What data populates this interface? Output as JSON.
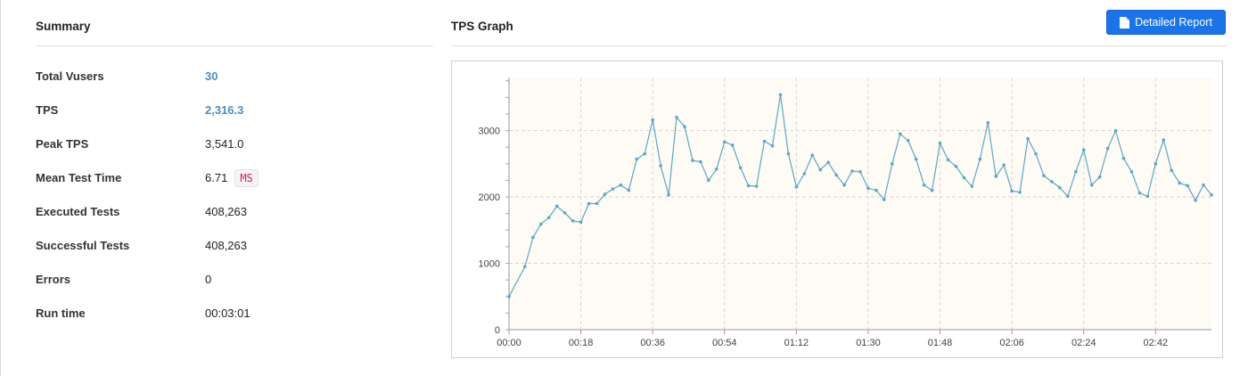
{
  "summary": {
    "title": "Summary",
    "rows": [
      {
        "label": "Total Vusers",
        "value": "30"
      },
      {
        "label": "TPS",
        "value": "2,316.3"
      },
      {
        "label": "Peak TPS",
        "value": "3,541.0"
      },
      {
        "label": "Mean Test Time",
        "value": "6.71",
        "unit": "MS"
      },
      {
        "label": "Executed Tests",
        "value": "408,263"
      },
      {
        "label": "Successful Tests",
        "value": "408,263"
      },
      {
        "label": "Errors",
        "value": "0"
      },
      {
        "label": "Run time",
        "value": "00:03:01"
      }
    ]
  },
  "graph": {
    "title": "TPS Graph",
    "report_button_label": "Detailed Report",
    "report_button_icon": "document-icon"
  },
  "colors": {
    "accent_button": "#1a73e8",
    "link_value": "#4a8fc4",
    "series_line": "#5aa9c2",
    "plot_background": "#fdfbf4",
    "unit_badge_text": "#c7254e"
  },
  "chart_data": {
    "type": "line",
    "title": "",
    "xlabel": "",
    "ylabel": "",
    "x_unit": "seconds",
    "x_tick_labels": [
      "00:00",
      "00:18",
      "00:36",
      "00:54",
      "01:12",
      "01:30",
      "01:48",
      "02:06",
      "02:24",
      "02:42"
    ],
    "y_tick_labels": [
      "0",
      "1000",
      "2000",
      "3000"
    ],
    "xlim": [
      0,
      176
    ],
    "ylim": [
      0,
      3800
    ],
    "grid": true,
    "series": [
      {
        "name": "",
        "x": [
          0,
          4,
          6,
          8,
          10,
          12,
          14,
          16,
          18,
          20,
          22,
          24,
          26,
          28,
          30,
          32,
          34,
          36,
          38,
          40,
          42,
          44,
          46,
          48,
          50,
          52,
          54,
          56,
          58,
          60,
          62,
          64,
          66,
          68,
          70,
          72,
          74,
          76,
          78,
          80,
          82,
          84,
          86,
          88,
          90,
          92,
          94,
          96,
          98,
          100,
          102,
          104,
          106,
          108,
          110,
          112,
          114,
          116,
          118,
          120,
          122,
          124,
          126,
          128,
          130,
          132,
          134,
          136,
          138,
          140,
          142,
          144,
          146,
          148,
          150,
          152,
          154,
          156,
          158,
          160,
          162,
          164,
          166,
          168,
          170,
          172,
          174,
          176
        ],
        "y": [
          500,
          950,
          1390,
          1590,
          1690,
          1860,
          1760,
          1640,
          1620,
          1900,
          1900,
          2040,
          2120,
          2180,
          2100,
          2570,
          2650,
          3160,
          2470,
          2030,
          3200,
          3060,
          2550,
          2530,
          2250,
          2420,
          2830,
          2780,
          2440,
          2170,
          2160,
          2840,
          2770,
          3541,
          2650,
          2150,
          2350,
          2630,
          2410,
          2520,
          2330,
          2180,
          2390,
          2380,
          2130,
          2100,
          1960,
          2500,
          2950,
          2850,
          2570,
          2180,
          2100,
          2810,
          2560,
          2460,
          2290,
          2160,
          2570,
          3120,
          2310,
          2480,
          2090,
          2070,
          2880,
          2650,
          2320,
          2230,
          2140,
          2010,
          2380,
          2710,
          2180,
          2300,
          2730,
          3000,
          2580,
          2380,
          2060,
          2010,
          2500,
          2860,
          2400,
          2210,
          2170,
          1950,
          2180,
          2030
        ]
      }
    ]
  }
}
